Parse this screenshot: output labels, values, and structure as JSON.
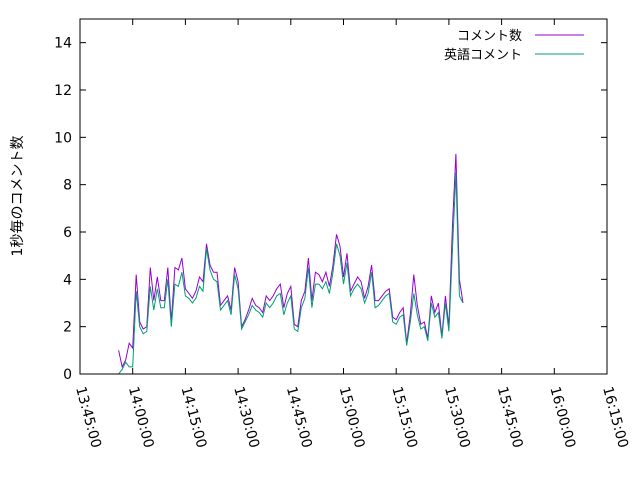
{
  "chart_data": {
    "type": "line",
    "title": "",
    "xlabel": "",
    "ylabel": "1秒毎のコメント数",
    "xlim": [
      "13:45:00",
      "16:15:00"
    ],
    "ylim": [
      0,
      15
    ],
    "grid": false,
    "legend_position": "top-right",
    "x_ticks": [
      "13:45:00",
      "14:00:00",
      "14:15:00",
      "14:30:00",
      "14:45:00",
      "15:00:00",
      "15:15:00",
      "15:30:00",
      "15:45:00",
      "16:00:00",
      "16:15:00"
    ],
    "y_ticks": [
      0,
      2,
      4,
      6,
      8,
      10,
      12,
      14
    ],
    "series": [
      {
        "name": "コメント数",
        "color": "#9400d3",
        "points": [
          [
            "13:56:00",
            1.0
          ],
          [
            "13:57:00",
            0.3
          ],
          [
            "13:58:00",
            0.6
          ],
          [
            "13:59:00",
            1.3
          ],
          [
            "14:00:00",
            1.1
          ],
          [
            "14:01:00",
            4.2
          ],
          [
            "14:02:00",
            2.2
          ],
          [
            "14:03:00",
            1.9
          ],
          [
            "14:04:00",
            2.0
          ],
          [
            "14:05:00",
            4.5
          ],
          [
            "14:06:00",
            3.1
          ],
          [
            "14:07:00",
            4.1
          ],
          [
            "14:08:00",
            3.1
          ],
          [
            "14:09:00",
            3.1
          ],
          [
            "14:10:00",
            4.5
          ],
          [
            "14:11:00",
            2.2
          ],
          [
            "14:12:00",
            4.5
          ],
          [
            "14:13:00",
            4.4
          ],
          [
            "14:14:00",
            4.9
          ],
          [
            "14:15:00",
            3.6
          ],
          [
            "14:16:00",
            3.4
          ],
          [
            "14:17:00",
            3.2
          ],
          [
            "14:18:00",
            3.5
          ],
          [
            "14:19:00",
            4.1
          ],
          [
            "14:20:00",
            3.9
          ],
          [
            "14:21:00",
            5.5
          ],
          [
            "14:22:00",
            4.6
          ],
          [
            "14:23:00",
            4.3
          ],
          [
            "14:24:00",
            4.3
          ],
          [
            "14:25:00",
            2.9
          ],
          [
            "14:26:00",
            3.1
          ],
          [
            "14:27:00",
            3.3
          ],
          [
            "14:28:00",
            2.7
          ],
          [
            "14:29:00",
            4.5
          ],
          [
            "14:30:00",
            3.9
          ],
          [
            "14:31:00",
            2.0
          ],
          [
            "14:32:00",
            2.3
          ],
          [
            "14:33:00",
            2.7
          ],
          [
            "14:34:00",
            3.2
          ],
          [
            "14:35:00",
            2.9
          ],
          [
            "14:36:00",
            2.8
          ],
          [
            "14:37:00",
            2.6
          ],
          [
            "14:38:00",
            3.3
          ],
          [
            "14:39:00",
            3.1
          ],
          [
            "14:40:00",
            3.3
          ],
          [
            "14:41:00",
            3.6
          ],
          [
            "14:42:00",
            3.8
          ],
          [
            "14:43:00",
            2.8
          ],
          [
            "14:44:00",
            3.4
          ],
          [
            "14:45:00",
            3.7
          ],
          [
            "14:46:00",
            2.1
          ],
          [
            "14:47:00",
            2.0
          ],
          [
            "14:48:00",
            3.1
          ],
          [
            "14:49:00",
            3.5
          ],
          [
            "14:50:00",
            4.9
          ],
          [
            "14:51:00",
            3.1
          ],
          [
            "14:52:00",
            4.3
          ],
          [
            "14:53:00",
            4.2
          ],
          [
            "14:54:00",
            3.9
          ],
          [
            "14:55:00",
            4.3
          ],
          [
            "14:56:00",
            3.7
          ],
          [
            "14:57:00",
            4.6
          ],
          [
            "14:58:00",
            5.9
          ],
          [
            "14:59:00",
            5.4
          ],
          [
            "15:00:00",
            4.1
          ],
          [
            "15:01:00",
            5.1
          ],
          [
            "15:02:00",
            3.5
          ],
          [
            "15:03:00",
            3.8
          ],
          [
            "15:04:00",
            4.1
          ],
          [
            "15:05:00",
            3.9
          ],
          [
            "15:06:00",
            3.2
          ],
          [
            "15:07:00",
            3.7
          ],
          [
            "15:08:00",
            4.6
          ],
          [
            "15:09:00",
            3.1
          ],
          [
            "15:10:00",
            3.1
          ],
          [
            "15:11:00",
            3.3
          ],
          [
            "15:12:00",
            3.5
          ],
          [
            "15:13:00",
            3.6
          ],
          [
            "15:14:00",
            2.4
          ],
          [
            "15:15:00",
            2.3
          ],
          [
            "15:16:00",
            2.6
          ],
          [
            "15:17:00",
            2.8
          ],
          [
            "15:18:00",
            1.3
          ],
          [
            "15:19:00",
            2.5
          ],
          [
            "15:20:00",
            4.2
          ],
          [
            "15:21:00",
            2.9
          ],
          [
            "15:22:00",
            2.1
          ],
          [
            "15:23:00",
            2.2
          ],
          [
            "15:24:00",
            1.5
          ],
          [
            "15:25:00",
            3.3
          ],
          [
            "15:26:00",
            2.6
          ],
          [
            "15:27:00",
            3.0
          ],
          [
            "15:28:00",
            1.6
          ],
          [
            "15:29:00",
            3.3
          ],
          [
            "15:30:00",
            2.0
          ],
          [
            "15:31:00",
            6.2
          ],
          [
            "15:32:00",
            9.3
          ],
          [
            "15:33:00",
            4.0
          ],
          [
            "15:34:00",
            3.0
          ]
        ]
      },
      {
        "name": "英語コメント",
        "color": "#009e73",
        "points": [
          [
            "13:56:00",
            0.0
          ],
          [
            "13:57:00",
            0.2
          ],
          [
            "13:58:00",
            0.5
          ],
          [
            "13:59:00",
            0.3
          ],
          [
            "14:00:00",
            0.3
          ],
          [
            "14:01:00",
            3.5
          ],
          [
            "14:02:00",
            2.0
          ],
          [
            "14:03:00",
            1.7
          ],
          [
            "14:04:00",
            1.8
          ],
          [
            "14:05:00",
            3.7
          ],
          [
            "14:06:00",
            2.7
          ],
          [
            "14:07:00",
            3.6
          ],
          [
            "14:08:00",
            2.8
          ],
          [
            "14:09:00",
            2.8
          ],
          [
            "14:10:00",
            4.0
          ],
          [
            "14:11:00",
            2.0
          ],
          [
            "14:12:00",
            3.8
          ],
          [
            "14:13:00",
            3.7
          ],
          [
            "14:14:00",
            4.3
          ],
          [
            "14:15:00",
            3.3
          ],
          [
            "14:16:00",
            3.2
          ],
          [
            "14:17:00",
            3.0
          ],
          [
            "14:18:00",
            3.2
          ],
          [
            "14:19:00",
            3.7
          ],
          [
            "14:20:00",
            3.5
          ],
          [
            "14:21:00",
            5.3
          ],
          [
            "14:22:00",
            4.4
          ],
          [
            "14:23:00",
            4.0
          ],
          [
            "14:24:00",
            3.9
          ],
          [
            "14:25:00",
            2.7
          ],
          [
            "14:26:00",
            2.9
          ],
          [
            "14:27:00",
            3.1
          ],
          [
            "14:28:00",
            2.5
          ],
          [
            "14:29:00",
            4.2
          ],
          [
            "14:30:00",
            3.6
          ],
          [
            "14:31:00",
            1.9
          ],
          [
            "14:32:00",
            2.2
          ],
          [
            "14:33:00",
            2.5
          ],
          [
            "14:34:00",
            2.9
          ],
          [
            "14:35:00",
            2.7
          ],
          [
            "14:36:00",
            2.6
          ],
          [
            "14:37:00",
            2.4
          ],
          [
            "14:38:00",
            3.0
          ],
          [
            "14:39:00",
            2.8
          ],
          [
            "14:40:00",
            3.0
          ],
          [
            "14:41:00",
            3.3
          ],
          [
            "14:42:00",
            3.4
          ],
          [
            "14:43:00",
            2.5
          ],
          [
            "14:44:00",
            3.0
          ],
          [
            "14:45:00",
            3.3
          ],
          [
            "14:46:00",
            1.9
          ],
          [
            "14:47:00",
            1.8
          ],
          [
            "14:48:00",
            2.8
          ],
          [
            "14:49:00",
            3.2
          ],
          [
            "14:50:00",
            4.5
          ],
          [
            "14:51:00",
            2.8
          ],
          [
            "14:52:00",
            3.8
          ],
          [
            "14:53:00",
            3.8
          ],
          [
            "14:54:00",
            3.6
          ],
          [
            "14:55:00",
            3.9
          ],
          [
            "14:56:00",
            3.4
          ],
          [
            "14:57:00",
            4.3
          ],
          [
            "14:58:00",
            5.5
          ],
          [
            "14:59:00",
            5.0
          ],
          [
            "15:00:00",
            3.8
          ],
          [
            "15:01:00",
            4.7
          ],
          [
            "15:02:00",
            3.3
          ],
          [
            "15:03:00",
            3.6
          ],
          [
            "15:04:00",
            3.8
          ],
          [
            "15:05:00",
            3.6
          ],
          [
            "15:06:00",
            3.0
          ],
          [
            "15:07:00",
            3.4
          ],
          [
            "15:08:00",
            4.3
          ],
          [
            "15:09:00",
            2.8
          ],
          [
            "15:10:00",
            2.9
          ],
          [
            "15:11:00",
            3.1
          ],
          [
            "15:12:00",
            3.3
          ],
          [
            "15:13:00",
            3.4
          ],
          [
            "15:14:00",
            2.2
          ],
          [
            "15:15:00",
            2.1
          ],
          [
            "15:16:00",
            2.4
          ],
          [
            "15:17:00",
            2.5
          ],
          [
            "15:18:00",
            1.2
          ],
          [
            "15:19:00",
            2.2
          ],
          [
            "15:20:00",
            3.4
          ],
          [
            "15:21:00",
            2.5
          ],
          [
            "15:22:00",
            1.9
          ],
          [
            "15:23:00",
            2.0
          ],
          [
            "15:24:00",
            1.4
          ],
          [
            "15:25:00",
            3.0
          ],
          [
            "15:26:00",
            2.4
          ],
          [
            "15:27:00",
            2.6
          ],
          [
            "15:28:00",
            1.5
          ],
          [
            "15:29:00",
            3.0
          ],
          [
            "15:30:00",
            1.8
          ],
          [
            "15:31:00",
            5.2
          ],
          [
            "15:32:00",
            8.5
          ],
          [
            "15:33:00",
            3.3
          ],
          [
            "15:34:00",
            3.0
          ]
        ]
      }
    ]
  }
}
